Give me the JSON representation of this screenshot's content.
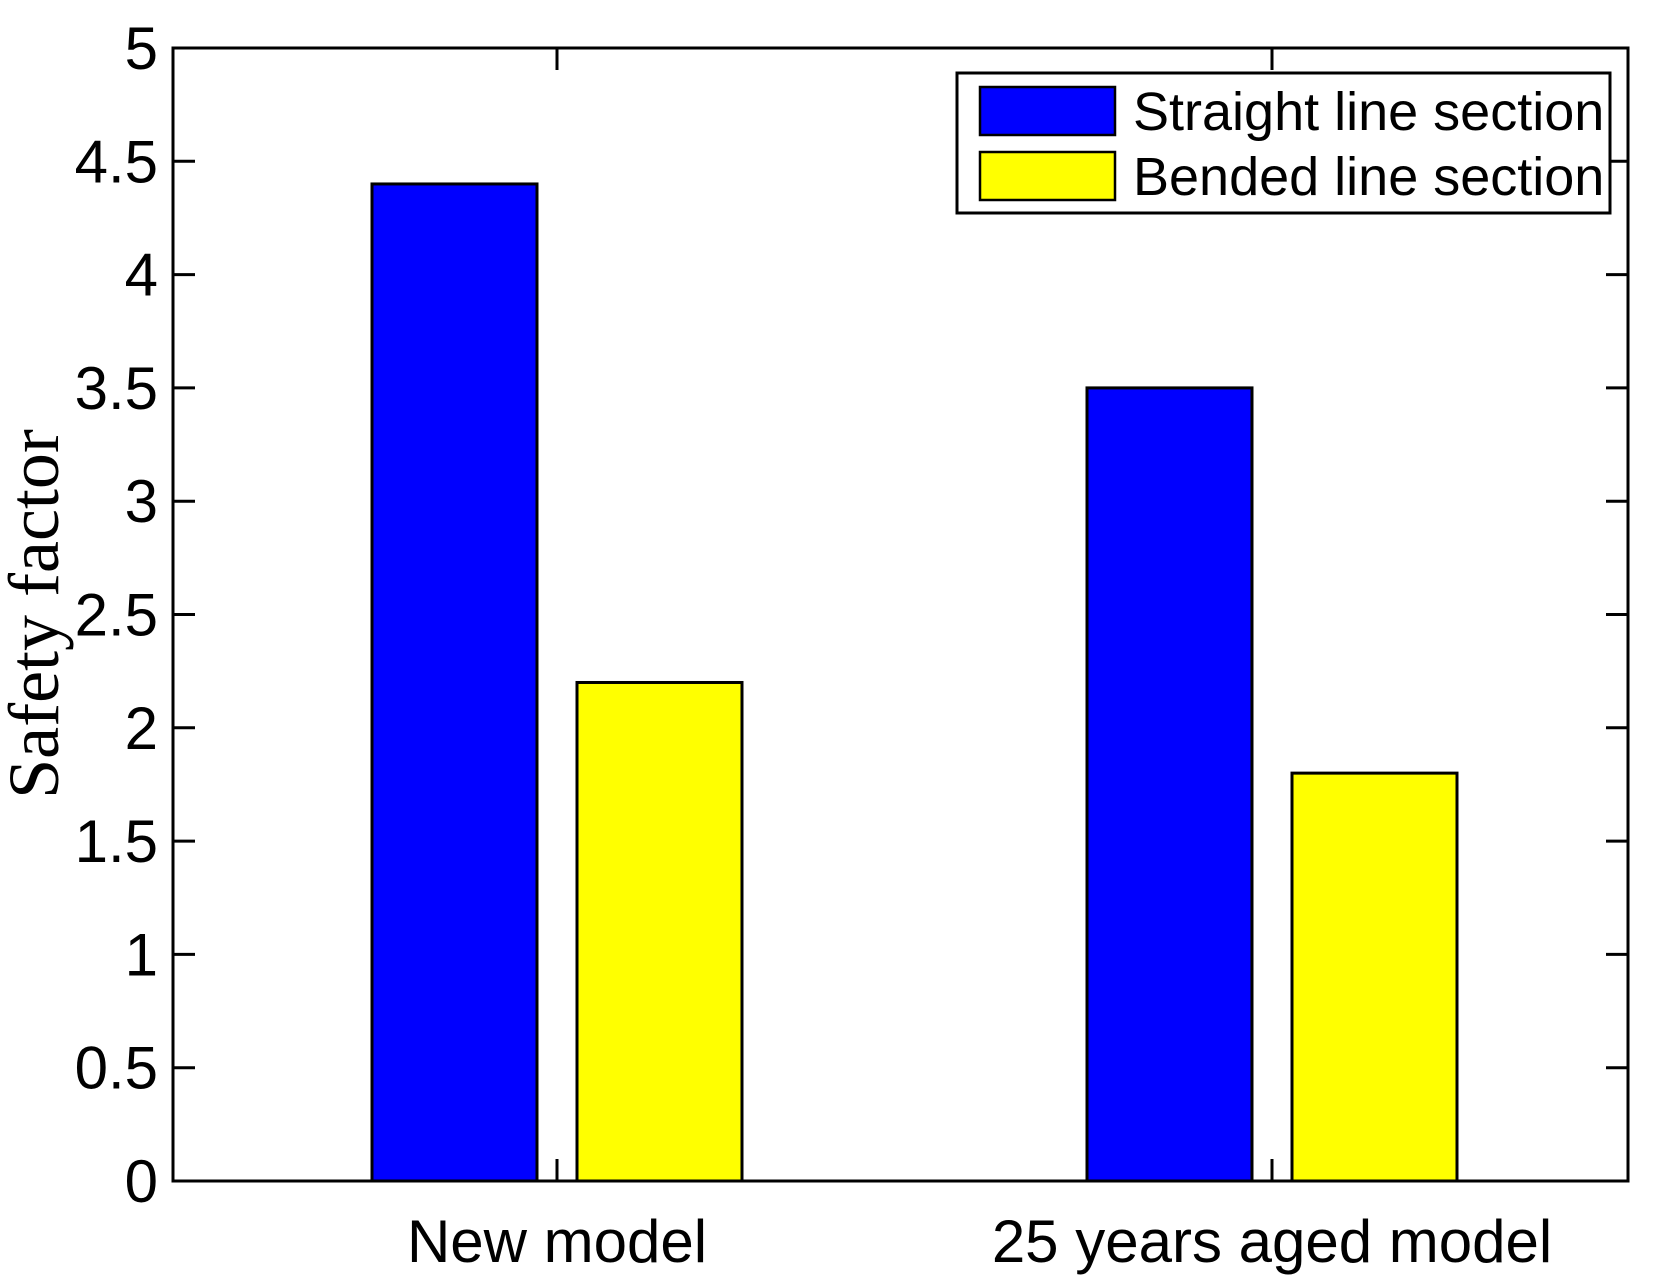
{
  "figure": {
    "background": "#ffffff",
    "axis_color": "#000000"
  },
  "chart_data": {
    "type": "bar",
    "title": "",
    "xlabel": "",
    "ylabel": "Safety factor",
    "categories": [
      "New model",
      "25 years aged model"
    ],
    "series": [
      {
        "name": "Straight line section",
        "color": "#0000ff",
        "values": [
          4.4,
          3.5
        ]
      },
      {
        "name": "Bended line section",
        "color": "#ffff00",
        "values": [
          2.2,
          1.8
        ]
      }
    ],
    "ylim": [
      0,
      5
    ],
    "ytick_step": 0.5,
    "ytick_labels": [
      "0",
      "0.5",
      "1",
      "1.5",
      "2",
      "2.5",
      "3",
      "3.5",
      "4",
      "4.5",
      "5"
    ],
    "grid": false,
    "legend": {
      "position": "top-right",
      "entries": [
        "Straight line section",
        "Bended line section"
      ]
    }
  }
}
